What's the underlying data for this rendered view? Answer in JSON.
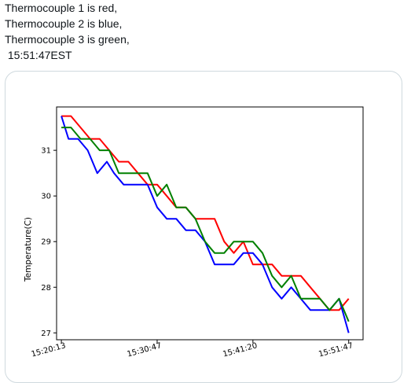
{
  "caption": {
    "lines": [
      "Thermocouple 1 is red,",
      "Thermocouple 2 is blue,",
      "Thermocouple 3 is green,",
      " 15:51:47EST"
    ]
  },
  "colors": {
    "thermocouple_1": "#ff0000",
    "thermocouple_2": "#0000ff",
    "thermocouple_3": "#008000",
    "card_border": "#cfd9de"
  },
  "chart_data": {
    "type": "line",
    "title": "",
    "ylabel": "Temperature(C)",
    "xlabel": "",
    "xlim": [
      -1,
      63
    ],
    "ylim": [
      26.85,
      31.95
    ],
    "yticks": [
      27,
      28,
      29,
      30,
      31
    ],
    "xticks": [
      {
        "value": 0,
        "label": "15:20:13"
      },
      {
        "value": 20,
        "label": "15:30:47"
      },
      {
        "value": 40,
        "label": "15:41:20"
      },
      {
        "value": 60,
        "label": "15:51:47"
      }
    ],
    "grid": false,
    "series": [
      {
        "color_key": "thermocouple_1",
        "points": [
          [
            0,
            31.75
          ],
          [
            2,
            31.75
          ],
          [
            4,
            31.5
          ],
          [
            6,
            31.25
          ],
          [
            8,
            31.25
          ],
          [
            10,
            31
          ],
          [
            12,
            30.75
          ],
          [
            14,
            30.75
          ],
          [
            16,
            30.5
          ],
          [
            18,
            30.25
          ],
          [
            20,
            30.25
          ],
          [
            22,
            30
          ],
          [
            24,
            29.75
          ],
          [
            26,
            29.75
          ],
          [
            28,
            29.5
          ],
          [
            30,
            29.5
          ],
          [
            32,
            29.5
          ],
          [
            34,
            29
          ],
          [
            36,
            28.75
          ],
          [
            38,
            29
          ],
          [
            40,
            28.5
          ],
          [
            42,
            28.5
          ],
          [
            44,
            28.5
          ],
          [
            46,
            28.25
          ],
          [
            48,
            28.25
          ],
          [
            50,
            28.25
          ],
          [
            52,
            28
          ],
          [
            54,
            27.75
          ],
          [
            56,
            27.5
          ],
          [
            58,
            27.5
          ],
          [
            60,
            27.75
          ]
        ]
      },
      {
        "color_key": "thermocouple_2",
        "points": [
          [
            0,
            31.75
          ],
          [
            1.5,
            31.25
          ],
          [
            3.5,
            31.25
          ],
          [
            5.5,
            31
          ],
          [
            7.5,
            30.5
          ],
          [
            9.5,
            30.75
          ],
          [
            11,
            30.5
          ],
          [
            13,
            30.25
          ],
          [
            16,
            30.25
          ],
          [
            18,
            30.25
          ],
          [
            20,
            29.75
          ],
          [
            22,
            29.5
          ],
          [
            24,
            29.5
          ],
          [
            26,
            29.25
          ],
          [
            28,
            29.25
          ],
          [
            30,
            29
          ],
          [
            32,
            28.5
          ],
          [
            34,
            28.5
          ],
          [
            36,
            28.5
          ],
          [
            38,
            28.75
          ],
          [
            40,
            28.75
          ],
          [
            42,
            28.5
          ],
          [
            44,
            28
          ],
          [
            46,
            27.75
          ],
          [
            48,
            28
          ],
          [
            50,
            27.75
          ],
          [
            52,
            27.5
          ],
          [
            54,
            27.5
          ],
          [
            56,
            27.5
          ],
          [
            58,
            27.75
          ],
          [
            60,
            27
          ]
        ]
      },
      {
        "color_key": "thermocouple_3",
        "points": [
          [
            0,
            31.5
          ],
          [
            2,
            31.5
          ],
          [
            4,
            31.25
          ],
          [
            6,
            31.25
          ],
          [
            8,
            31
          ],
          [
            10,
            31
          ],
          [
            12,
            30.5
          ],
          [
            14,
            30.5
          ],
          [
            16,
            30.5
          ],
          [
            18,
            30.5
          ],
          [
            20,
            30
          ],
          [
            22,
            30.25
          ],
          [
            24,
            29.75
          ],
          [
            26,
            29.75
          ],
          [
            28,
            29.5
          ],
          [
            30,
            29
          ],
          [
            32,
            28.75
          ],
          [
            34,
            28.75
          ],
          [
            36,
            29
          ],
          [
            38,
            29
          ],
          [
            40,
            29
          ],
          [
            42,
            28.75
          ],
          [
            44,
            28.25
          ],
          [
            46,
            28
          ],
          [
            48,
            28.25
          ],
          [
            50,
            27.75
          ],
          [
            52,
            27.75
          ],
          [
            54,
            27.75
          ],
          [
            56,
            27.5
          ],
          [
            58,
            27.75
          ],
          [
            60,
            27.25
          ]
        ]
      }
    ]
  }
}
